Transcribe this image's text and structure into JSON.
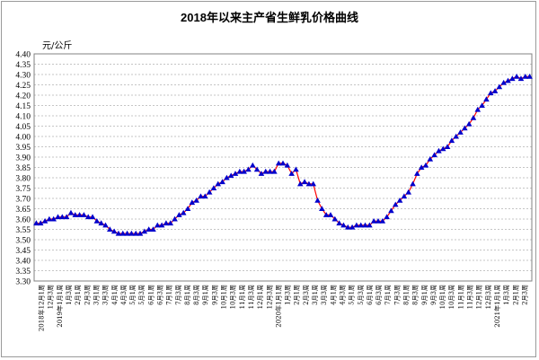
{
  "chart_data": {
    "type": "line",
    "title": "2018年以来主产省生鲜乳价格曲线",
    "ylabel": "元/公斤",
    "xlabel": "",
    "ylim": [
      3.3,
      4.4
    ],
    "yticks": [
      "3.30",
      "3.35",
      "3.40",
      "3.45",
      "3.50",
      "3.55",
      "3.60",
      "3.65",
      "3.70",
      "3.75",
      "3.80",
      "3.85",
      "3.90",
      "3.95",
      "4.00",
      "4.05",
      "4.10",
      "4.15",
      "4.20",
      "4.25",
      "4.30",
      "4.35",
      "4.40"
    ],
    "grid": true,
    "line_color": "#ff0000",
    "marker_color": "#0000cc",
    "x_labels": [
      "2018年12月1周",
      "12月3周",
      "2019年1月1周",
      "1月3周",
      "2月1周",
      "2月3周",
      "3月1周",
      "3月3周",
      "4月1周",
      "4月3周",
      "5月1周",
      "5月3周",
      "6月1周",
      "6月3周",
      "7月1周",
      "7月3周",
      "8月1周",
      "8月3周",
      "9月1周",
      "9月3周",
      "10月1周",
      "10月3周",
      "11月1周",
      "11月3周",
      "12月1周",
      "12月3周",
      "2020年1月1周",
      "1月3周",
      "2月1周",
      "2月3周",
      "3月1周",
      "3月3周",
      "4月1周",
      "4月3周",
      "5月1周",
      "5月3周",
      "6月1周",
      "6月3周",
      "7月1周",
      "7月3周",
      "8月1周",
      "8月3周",
      "9月1周",
      "9月3周",
      "10月1周",
      "10月3周",
      "11月1周",
      "11月3周",
      "12月1周",
      "12月3周",
      "2021年1月1周",
      "1月3周",
      "2月1周",
      "2月3周"
    ],
    "values": [
      3.58,
      3.58,
      3.59,
      3.6,
      3.6,
      3.61,
      3.61,
      3.61,
      3.63,
      3.62,
      3.62,
      3.62,
      3.61,
      3.61,
      3.59,
      3.58,
      3.57,
      3.55,
      3.54,
      3.53,
      3.53,
      3.53,
      3.53,
      3.53,
      3.53,
      3.54,
      3.55,
      3.55,
      3.57,
      3.57,
      3.58,
      3.58,
      3.6,
      3.62,
      3.63,
      3.65,
      3.68,
      3.69,
      3.71,
      3.71,
      3.73,
      3.75,
      3.77,
      3.78,
      3.8,
      3.81,
      3.82,
      3.83,
      3.83,
      3.84,
      3.86,
      3.84,
      3.82,
      3.83,
      3.83,
      3.83,
      3.87,
      3.87,
      3.86,
      3.82,
      3.84,
      3.77,
      3.78,
      3.77,
      3.77,
      3.69,
      3.65,
      3.62,
      3.62,
      3.6,
      3.58,
      3.57,
      3.56,
      3.56,
      3.57,
      3.57,
      3.57,
      3.57,
      3.59,
      3.59,
      3.59,
      3.61,
      3.64,
      3.67,
      3.69,
      3.71,
      3.73,
      3.77,
      3.82,
      3.85,
      3.86,
      3.89,
      3.91,
      3.93,
      3.94,
      3.95,
      3.98,
      4.0,
      4.02,
      4.04,
      4.06,
      4.09,
      4.13,
      4.15,
      4.18,
      4.21,
      4.22,
      4.24,
      4.26,
      4.27,
      4.28,
      4.29,
      4.28,
      4.29,
      4.29
    ]
  }
}
